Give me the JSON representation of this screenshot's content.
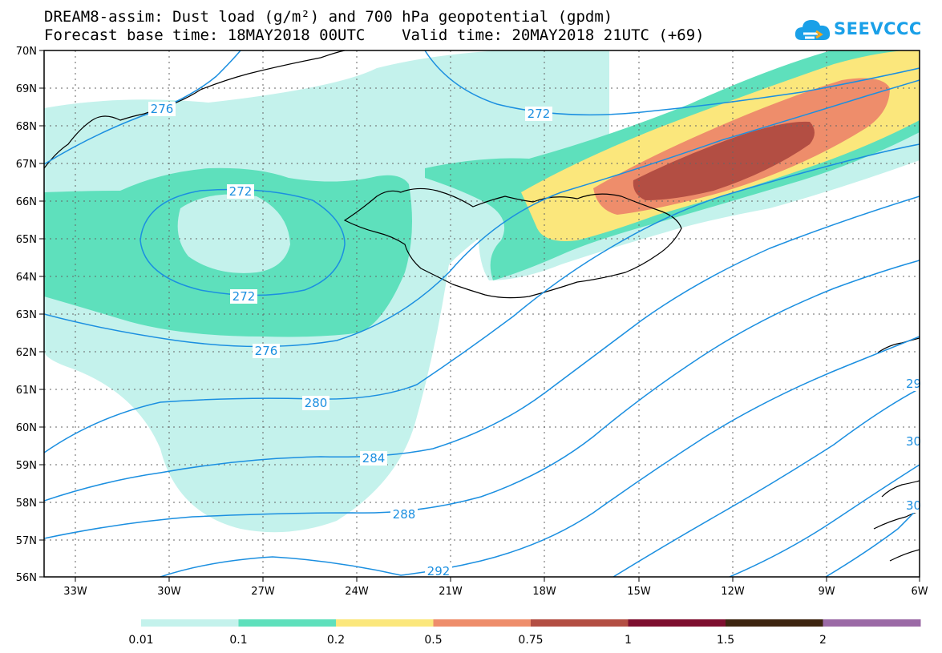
{
  "title": {
    "line1": "DREAM8-assim: Dust load (g/m²) and 700 hPa geopotential (gpdm)",
    "line2": "Forecast base time: 18MAY2018 00UTC    Valid time: 20MAY2018 21UTC (+69)"
  },
  "logo": {
    "text": "SEEVCCC",
    "icon": "cloud-icon",
    "color": "#1aa0e8"
  },
  "map": {
    "lat_labels": [
      "70N",
      "69N",
      "68N",
      "67N",
      "66N",
      "65N",
      "64N",
      "63N",
      "62N",
      "61N",
      "60N",
      "59N",
      "58N",
      "57N",
      "56N"
    ],
    "lon_labels": [
      "33W",
      "30W",
      "27W",
      "24W",
      "21W",
      "18W",
      "15W",
      "12W",
      "9W",
      "6W"
    ],
    "contour_color": "#1b8fe0",
    "contour_labels": [
      "276",
      "272",
      "272",
      "272",
      "276",
      "280",
      "284",
      "288",
      "292",
      "29",
      "30",
      "30"
    ]
  },
  "colorbar": {
    "labels": [
      "0.01",
      "0.1",
      "0.2",
      "0.5",
      "0.75",
      "1",
      "1.5",
      "2"
    ],
    "colors": [
      "#c4f2ec",
      "#5ee0bc",
      "#fbe77c",
      "#ee8d6b",
      "#b34e43",
      "#7e0f2f",
      "#3e2510",
      "#9b6aa6"
    ]
  }
}
